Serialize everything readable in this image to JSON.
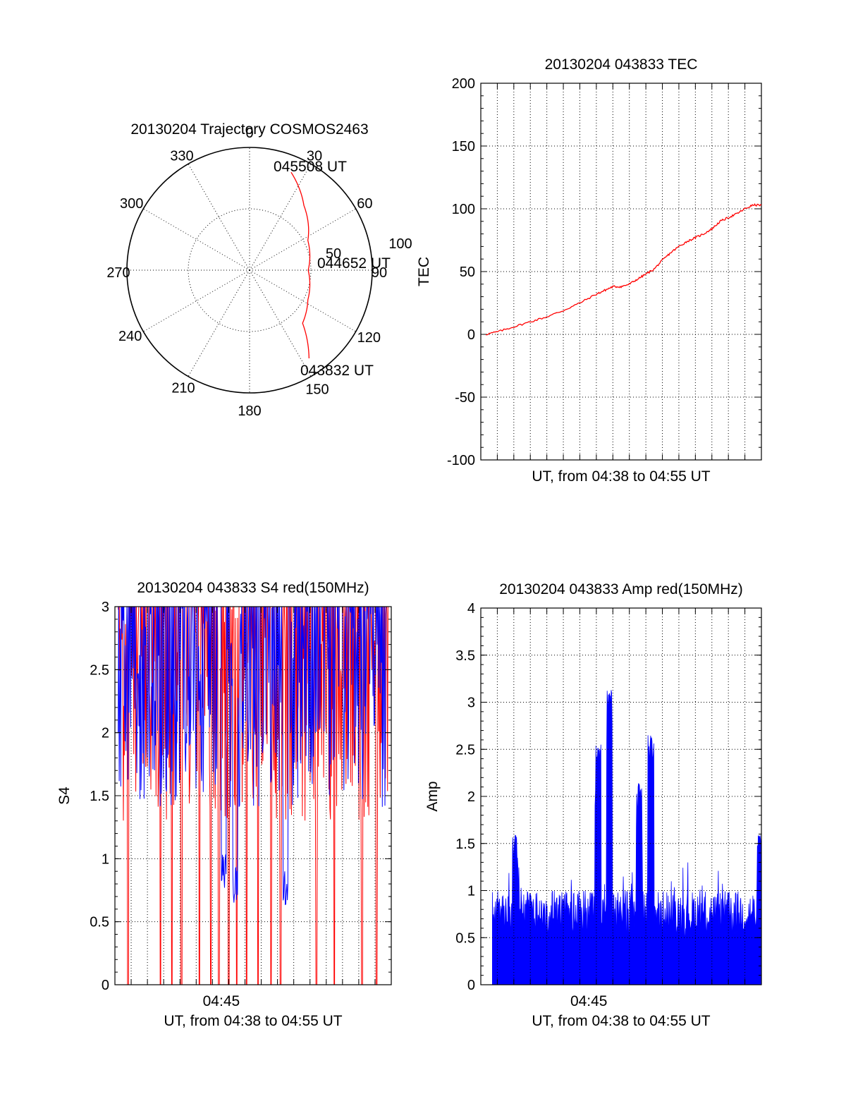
{
  "chart_data": [
    {
      "type": "polar",
      "title": "20130204 Trajectory COSMOS2463",
      "angle_labels": [
        "0",
        "30",
        "60",
        "90",
        "120",
        "150",
        "180",
        "210",
        "240",
        "270",
        "300",
        "330"
      ],
      "radial_labels": [
        "50",
        "100"
      ],
      "series": [
        {
          "color": "#ff0000",
          "points": [
            {
              "az": 23,
              "el": 12
            },
            {
              "az": 40,
              "el": 28
            },
            {
              "az": 63,
              "el": 42
            },
            {
              "az": 90,
              "el": 47
            },
            {
              "az": 117,
              "el": 42
            },
            {
              "az": 135,
              "el": 35
            },
            {
              "az": 146,
              "el": 12
            }
          ]
        }
      ],
      "annotations": [
        {
          "text": "045508 UT",
          "az": 23,
          "el": 12
        },
        {
          "text": "044652 UT",
          "az": 90,
          "el": 47
        },
        {
          "text": "043832 UT",
          "az": 146,
          "el": 12
        }
      ]
    },
    {
      "type": "line",
      "title": "20130204 043833 TEC",
      "xlabel": "UT, from 04:38 to 04:55 UT",
      "ylabel": "TEC",
      "xlim": [
        0,
        17
      ],
      "ylim": [
        -100,
        200
      ],
      "yticks": [
        "200",
        "150",
        "100",
        "50",
        "0",
        "-50",
        "-100"
      ],
      "grid": true,
      "series": [
        {
          "color": "#ff0000",
          "x": [
            0.3,
            1,
            2,
            3,
            4,
            5,
            6,
            7,
            7.5,
            8,
            8.5,
            9,
            9.5,
            10,
            10.5,
            11,
            11.5,
            12,
            12.5,
            13,
            13.5,
            14,
            14.5,
            15,
            15.5,
            16,
            16.5,
            17
          ],
          "y": [
            0,
            2,
            6,
            10,
            14,
            19,
            25,
            32,
            35,
            38,
            38,
            40,
            44,
            48,
            52,
            59,
            65,
            70,
            74,
            77,
            80,
            84,
            90,
            93,
            96,
            100,
            103,
            103
          ]
        }
      ]
    },
    {
      "type": "line",
      "title": "20130204 043833 S4 red(150MHz)",
      "xlabel": "UT, from 04:38 to 04:55 UT",
      "ylabel": "S4",
      "xlim": [
        0,
        17
      ],
      "ylim": [
        0,
        3
      ],
      "yticks": [
        "3",
        "2.5",
        "2",
        "1.5",
        "1",
        "0.5",
        "0"
      ],
      "xticks": [
        "04:45"
      ],
      "grid": true,
      "series": [
        {
          "color": "#ff0000",
          "noisy_band": [
            1.3,
            3
          ],
          "dropouts": [
            0.8,
            2.8,
            3.5,
            4.1,
            5.2,
            5.9,
            6.4,
            7.0,
            7.5,
            8.1,
            8.8,
            9.6,
            10.2,
            12.4,
            13.5,
            15.2,
            16.1
          ]
        },
        {
          "color": "#0000ff",
          "noisy_band": [
            1.4,
            3
          ],
          "dips": [
            {
              "x": 6.7,
              "y": 0.75
            },
            {
              "x": 7.4,
              "y": 0.65
            },
            {
              "x": 10.5,
              "y": 0.63
            }
          ]
        }
      ]
    },
    {
      "type": "bar",
      "title": "20130204 043833 Amp red(150MHz)",
      "xlabel": "UT, from 04:38 to 04:55 UT",
      "ylabel": "Amp",
      "xlim": [
        0,
        17
      ],
      "ylim": [
        0,
        4
      ],
      "yticks": [
        "4",
        "3.5",
        "3",
        "2.5",
        "2",
        "1.5",
        "1",
        "0.5",
        "0"
      ],
      "xticks": [
        "04:45"
      ],
      "grid": true,
      "series": [
        {
          "color": "#0000ff",
          "baseline": [
            0.5,
            1.0
          ],
          "peaks": [
            {
              "x": 2.1,
              "y": 1.6
            },
            {
              "x": 7.1,
              "y": 2.55
            },
            {
              "x": 7.8,
              "y": 3.13
            },
            {
              "x": 9.6,
              "y": 2.15
            },
            {
              "x": 10.3,
              "y": 2.65
            },
            {
              "x": 16.9,
              "y": 1.6
            }
          ]
        }
      ]
    }
  ]
}
